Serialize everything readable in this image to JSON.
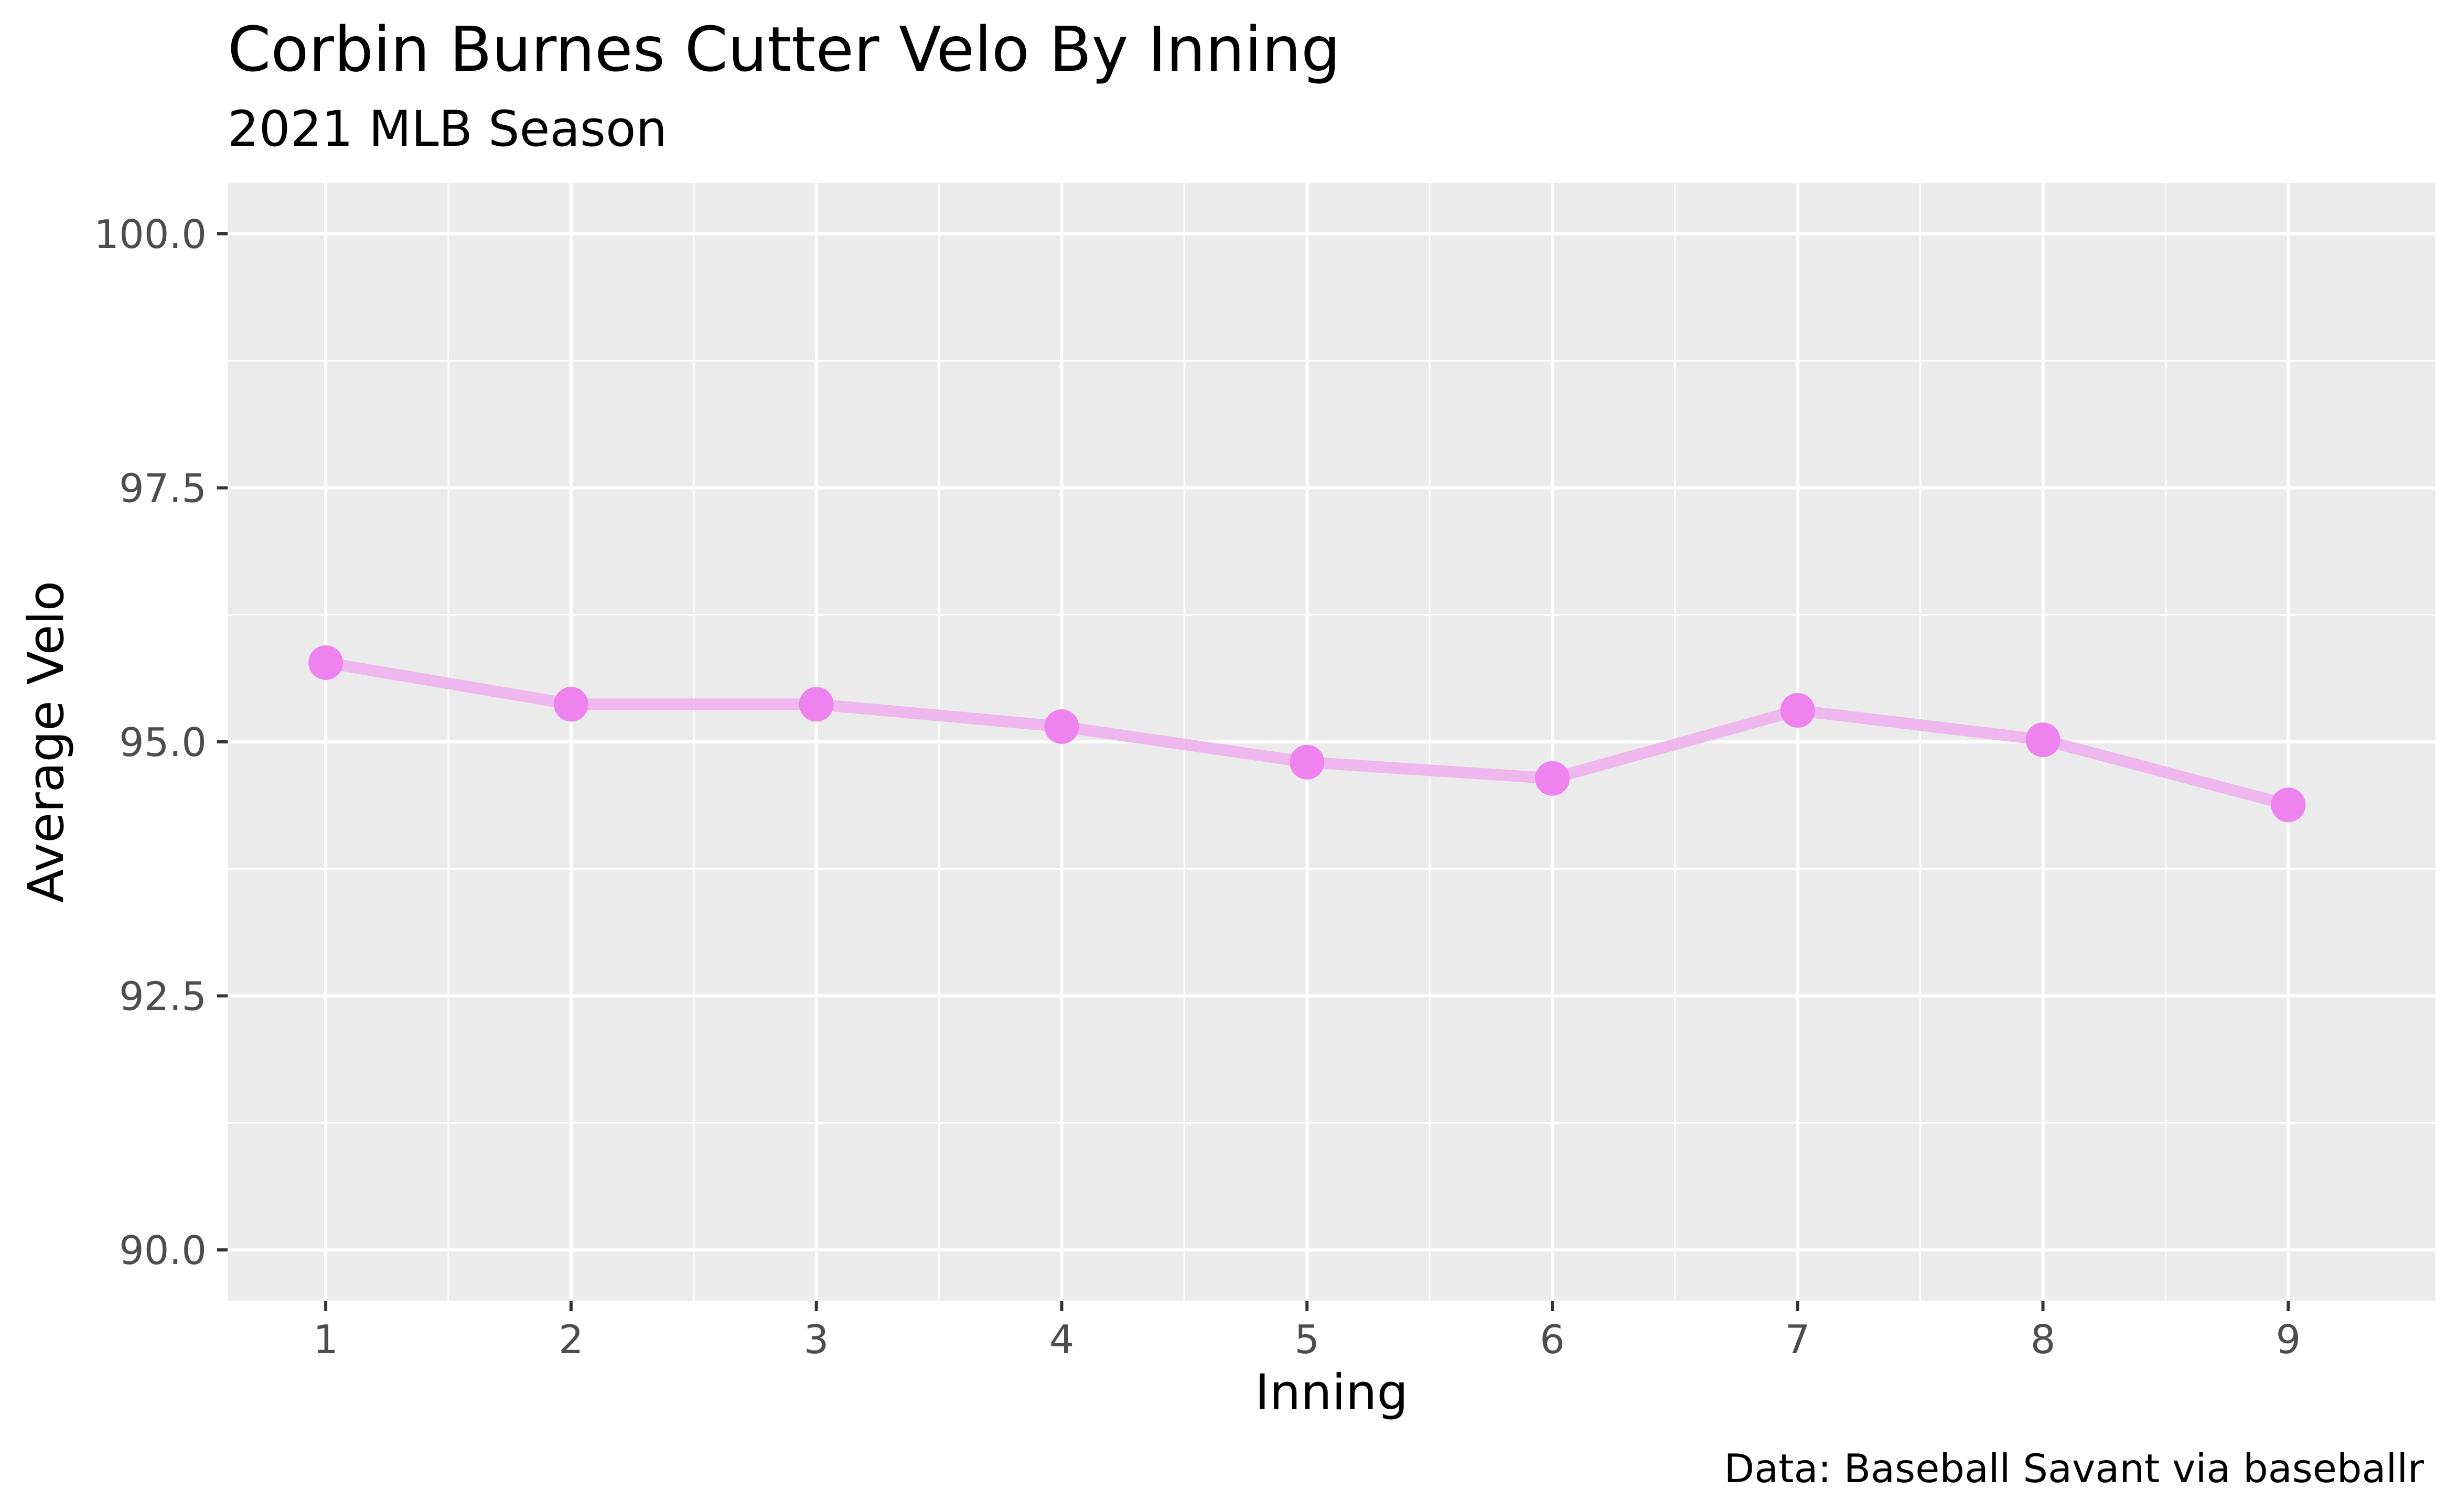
{
  "chart_data": {
    "type": "line",
    "title": "Corbin Burnes Cutter Velo By Inning",
    "subtitle": "2021 MLB Season",
    "xlabel": "Inning",
    "ylabel": "Average Velo",
    "caption": "Data: Baseball Savant via baseballr",
    "x": [
      1,
      2,
      3,
      4,
      5,
      6,
      7,
      8,
      9
    ],
    "x_tick_labels": [
      "1",
      "2",
      "3",
      "4",
      "5",
      "6",
      "7",
      "8",
      "9"
    ],
    "y_ticks": [
      90.0,
      92.5,
      95.0,
      97.5,
      100.0
    ],
    "y_tick_labels": [
      "90.0",
      "92.5",
      "95.0",
      "97.5",
      "100.0"
    ],
    "xlim": [
      0.6,
      9.6
    ],
    "ylim": [
      89.5,
      100.5
    ],
    "series": [
      {
        "values": [
          95.78,
          95.37,
          95.37,
          95.15,
          94.8,
          94.64,
          95.31,
          95.02,
          94.38
        ]
      }
    ],
    "colors": {
      "point": "#EE82EE",
      "line": "#EEB8EE",
      "panel_background": "#EBEBEB",
      "grid": "#FFFFFF"
    },
    "grid": true,
    "legend": "none"
  }
}
